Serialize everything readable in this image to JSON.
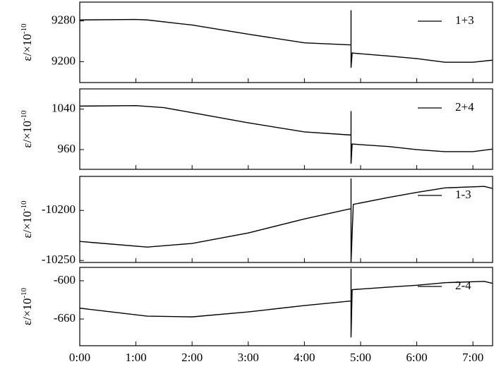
{
  "chart_data": [
    {
      "type": "line",
      "ylabel": "ε/×10",
      "ylabel_exponent": "-10",
      "x": [
        0,
        1,
        1.2,
        2,
        3,
        4,
        4.8,
        4.83,
        4.83,
        4.83,
        4.85,
        5.5,
        6,
        6.5,
        7,
        7.35
      ],
      "series": [
        {
          "name": "1+3",
          "color": "#000000",
          "values": [
            9282,
            9283,
            9282,
            9272,
            9254,
            9237,
            9233,
            9233,
            9301,
            9188,
            9217,
            9211,
            9206,
            9199,
            9199,
            9203
          ]
        }
      ],
      "xlim": [
        0,
        7.35
      ],
      "ylim": [
        9159,
        9317
      ],
      "yticks": [
        9200,
        9280
      ]
    },
    {
      "type": "line",
      "ylabel": "ε/×10",
      "ylabel_exponent": "-10",
      "x": [
        0,
        1,
        1.5,
        2,
        3,
        4,
        4.8,
        4.83,
        4.83,
        4.83,
        4.85,
        5.5,
        6,
        6.5,
        7,
        7.35
      ],
      "series": [
        {
          "name": "2+4",
          "color": "#000000",
          "values": [
            1046,
            1047,
            1043,
            1033,
            1013,
            995,
            989,
            989,
            1036,
            932,
            971,
            966,
            960,
            956,
            956,
            961
          ]
        }
      ],
      "xlim": [
        0,
        7.35
      ],
      "ylim": [
        921,
        1080
      ],
      "yticks": [
        960,
        1040
      ]
    },
    {
      "type": "line",
      "ylabel": "ε/×10",
      "ylabel_exponent": "-10",
      "x": [
        0,
        1.2,
        2,
        3,
        4,
        4.8,
        4.83,
        4.83,
        4.83,
        4.87,
        5.5,
        6,
        6.5,
        7.2,
        7.35
      ],
      "series": [
        {
          "name": "1-3",
          "color": "#000000",
          "values": [
            -10231,
            -10236.6,
            -10233,
            -10222.5,
            -10208.5,
            -10198.6,
            -10198.6,
            -10168,
            -10252,
            -10194,
            -10187,
            -10182,
            -10177.5,
            -10176,
            -10178
          ]
        }
      ],
      "xlim": [
        0,
        7.35
      ],
      "ylim": [
        -10252,
        -10166
      ],
      "yticks": [
        -10250,
        -10200
      ]
    },
    {
      "type": "line",
      "ylabel": "ε/×10",
      "ylabel_exponent": "-10",
      "x": [
        0,
        1.2,
        2,
        3,
        4,
        4.8,
        4.83,
        4.83,
        4.83,
        4.85,
        5.5,
        6,
        6.5,
        7.2,
        7.35
      ],
      "series": [
        {
          "name": "2-4",
          "color": "#000000",
          "values": [
            -643,
            -655.5,
            -656.7,
            -648.9,
            -638.9,
            -632,
            -632,
            -581,
            -689,
            -614,
            -610,
            -607,
            -603,
            -601,
            -604
          ]
        }
      ],
      "xlim": [
        0,
        7.35
      ],
      "ylim": [
        -702,
        -579
      ],
      "yticks": [
        -660,
        -600
      ],
      "xticks": [
        {
          "value": 0,
          "label": "0:00"
        },
        {
          "value": 1,
          "label": "1:00"
        },
        {
          "value": 2,
          "label": "2:00"
        },
        {
          "value": 3,
          "label": "3:00"
        },
        {
          "value": 4,
          "label": "4:00"
        },
        {
          "value": 5,
          "label": "5:00"
        },
        {
          "value": 6,
          "label": "6:00"
        },
        {
          "value": 7,
          "label": "7:00"
        }
      ]
    }
  ]
}
